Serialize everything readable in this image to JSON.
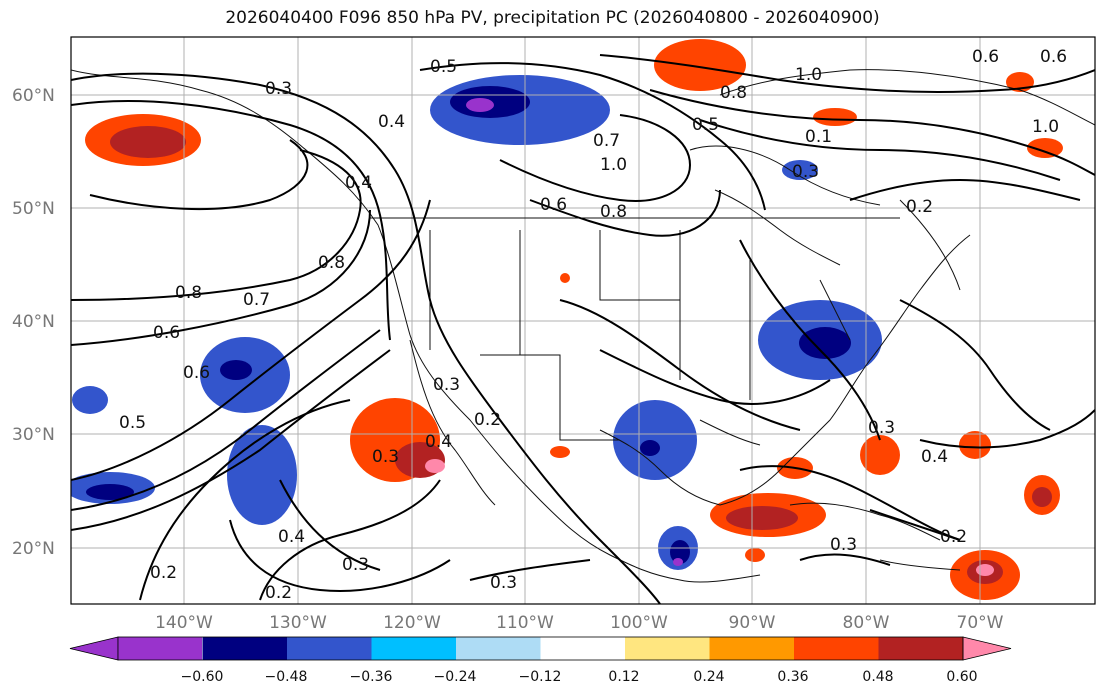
{
  "title": "2026040400 F096 850 hPa PV, precipitation PC (2026040800 - 2026040900)",
  "latitudes": [
    "60°N",
    "50°N",
    "40°N",
    "30°N",
    "20°N"
  ],
  "longitudes": [
    "140°W",
    "130°W",
    "120°W",
    "110°W",
    "100°W",
    "90°W",
    "80°W",
    "70°W"
  ],
  "contour_labels": [
    "0.5",
    "1.0",
    "0.8",
    "0.6",
    "0.6",
    "0.3",
    "0.4",
    "0.5",
    "0.7",
    "1.0",
    "0.6",
    "0.8",
    "0.1",
    "0.3",
    "1.0",
    "0.4",
    "0.8",
    "0.2",
    "0.8",
    "0.7",
    "0.6",
    "0.6",
    "0.5",
    "0.3",
    "0.2",
    "0.4",
    "0.3",
    "0.3",
    "0.4",
    "0.2",
    "0.4",
    "0.3",
    "0.2",
    "0.3",
    "0.3",
    "0.2"
  ],
  "colorbar": {
    "ticks": [
      "−0.60",
      "−0.48",
      "−0.36",
      "−0.24",
      "−0.12",
      "0.12",
      "0.24",
      "0.36",
      "0.48",
      "0.60"
    ],
    "colors": [
      "#9933cc",
      "#000080",
      "#3355cc",
      "#00bfff",
      "#aedcf5",
      "#ffffff",
      "#ffe680",
      "#ff9900",
      "#ff4400",
      "#b22222",
      "#ff88aa"
    ]
  },
  "palette": {
    "purple": "#9933cc",
    "navy": "#000080",
    "blue": "#3355cc",
    "cyan": "#00bfff",
    "lightblue": "#aedcf5",
    "yellow": "#ffe680",
    "orange": "#ff9900",
    "redorange": "#ff4400",
    "darkred": "#b22222",
    "pink": "#ff88aa"
  }
}
